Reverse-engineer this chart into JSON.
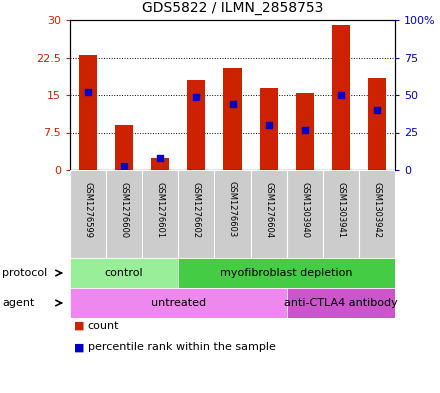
{
  "title": "GDS5822 / ILMN_2858753",
  "samples": [
    "GSM1276599",
    "GSM1276600",
    "GSM1276601",
    "GSM1276602",
    "GSM1276603",
    "GSM1276604",
    "GSM1303940",
    "GSM1303941",
    "GSM1303942"
  ],
  "counts": [
    23.0,
    9.0,
    2.5,
    18.0,
    20.5,
    16.5,
    15.5,
    29.0,
    18.5
  ],
  "percentile_ranks": [
    52,
    3,
    8,
    49,
    44,
    30,
    27,
    50,
    40
  ],
  "ylim_left": [
    0,
    30
  ],
  "ylim_right": [
    0,
    100
  ],
  "yticks_left": [
    0,
    7.5,
    15,
    22.5,
    30
  ],
  "yticks_right": [
    0,
    25,
    50,
    75,
    100
  ],
  "ytick_labels_left": [
    "0",
    "7.5",
    "15",
    "22.5",
    "30"
  ],
  "ytick_labels_right": [
    "0",
    "25",
    "50",
    "75",
    "100%"
  ],
  "bar_color": "#cc2200",
  "dot_color": "#0000cc",
  "protocol_labels": [
    {
      "text": "control",
      "start": 0,
      "end": 3,
      "color": "#99ee99"
    },
    {
      "text": "myofibroblast depletion",
      "start": 3,
      "end": 9,
      "color": "#44cc44"
    }
  ],
  "agent_labels": [
    {
      "text": "untreated",
      "start": 0,
      "end": 6,
      "color": "#ee88ee"
    },
    {
      "text": "anti-CTLA4 antibody",
      "start": 6,
      "end": 9,
      "color": "#cc55cc"
    }
  ],
  "legend_count_label": "count",
  "legend_pct_label": "percentile rank within the sample",
  "left_axis_color": "#cc2200",
  "right_axis_color": "#0000cc"
}
